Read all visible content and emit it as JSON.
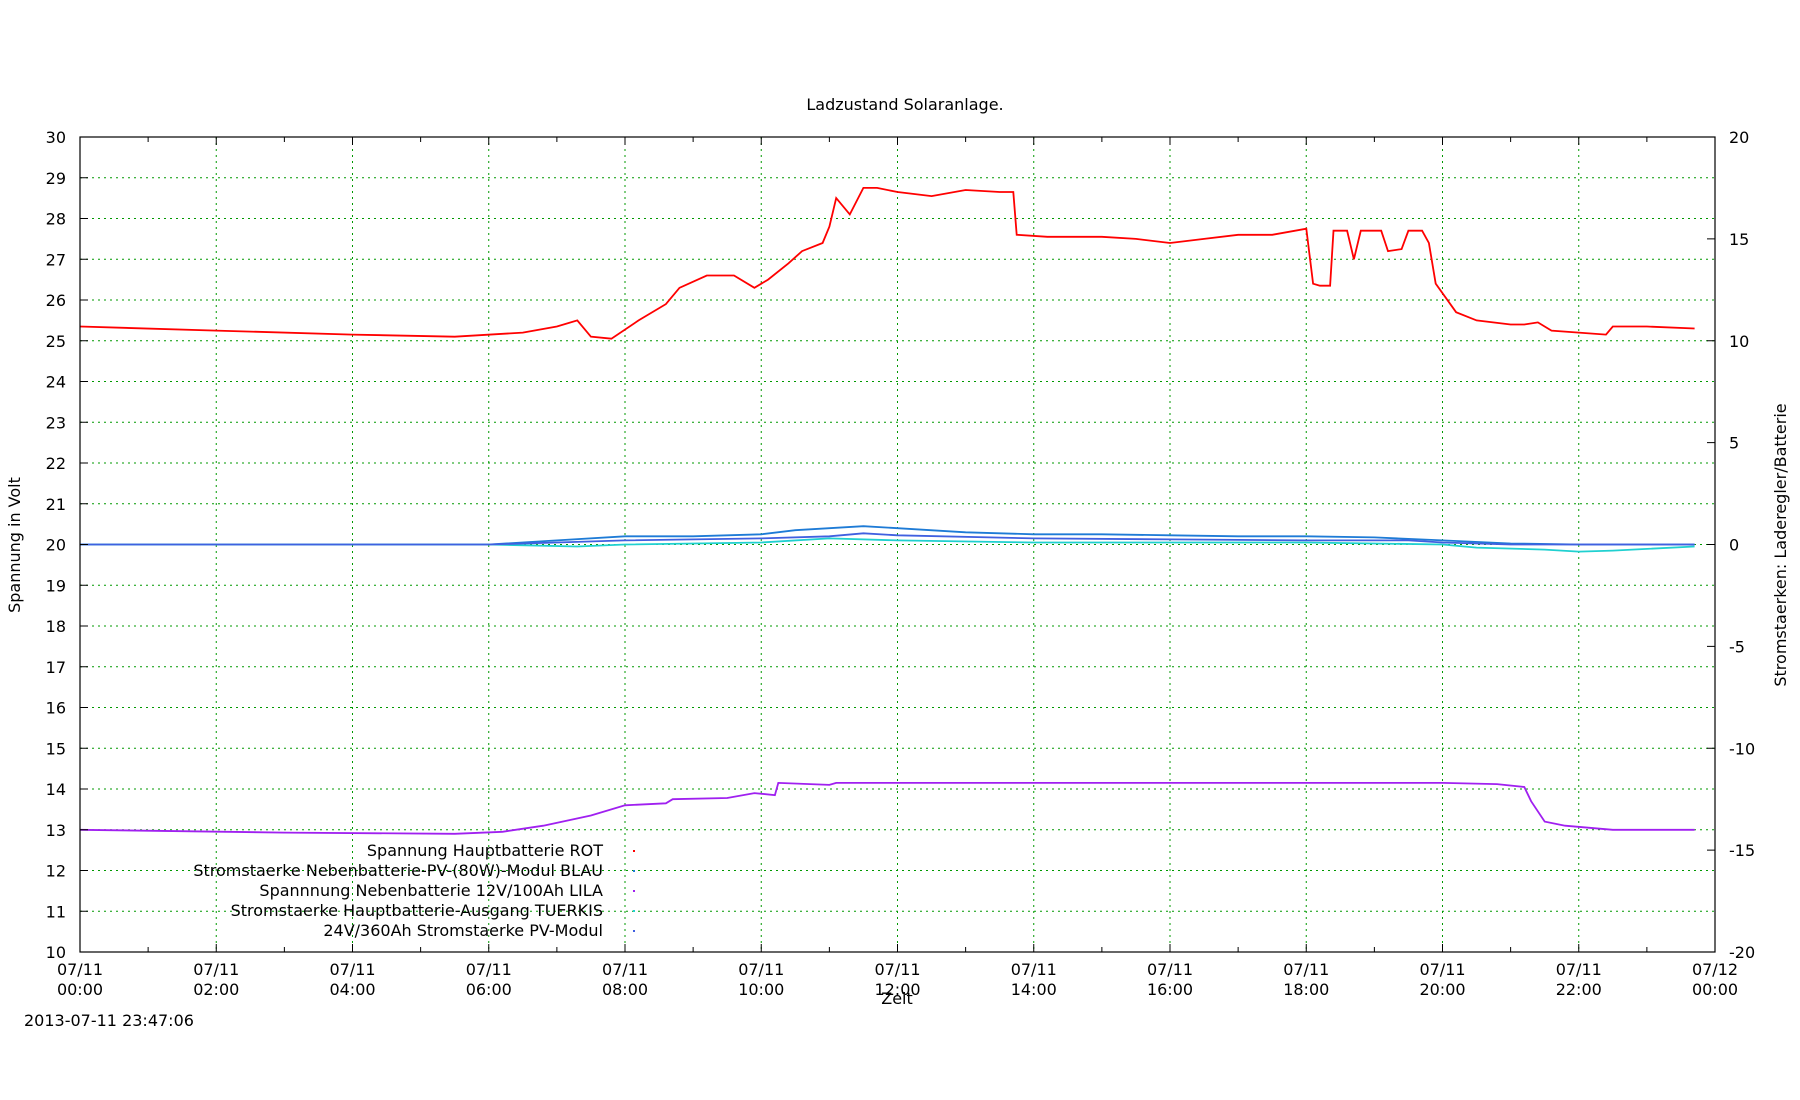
{
  "chart_data": {
    "type": "line",
    "title": "Ladzustand Solaranlage.",
    "timestamp": "2013-07-11 23:47:06",
    "xlabel": "Zeit",
    "ylabel": "Spannung in Volt",
    "y2label": "Stromstaerken: Laderegler/Batterie",
    "x_range": [
      "07/11 00:00",
      "07/12 00:00"
    ],
    "ylim": [
      10,
      30
    ],
    "y2lim": [
      -20,
      20
    ],
    "grid": true,
    "legend_position": "bottom-left inside",
    "x_ticks": [
      {
        "date": "07/11",
        "time": "00:00",
        "hour": 0
      },
      {
        "date": "07/11",
        "time": "02:00",
        "hour": 2
      },
      {
        "date": "07/11",
        "time": "04:00",
        "hour": 4
      },
      {
        "date": "07/11",
        "time": "06:00",
        "hour": 6
      },
      {
        "date": "07/11",
        "time": "08:00",
        "hour": 8
      },
      {
        "date": "07/11",
        "time": "10:00",
        "hour": 10
      },
      {
        "date": "07/11",
        "time": "12:00",
        "hour": 12
      },
      {
        "date": "07/11",
        "time": "14:00",
        "hour": 14
      },
      {
        "date": "07/11",
        "time": "16:00",
        "hour": 16
      },
      {
        "date": "07/11",
        "time": "18:00",
        "hour": 18
      },
      {
        "date": "07/11",
        "time": "20:00",
        "hour": 20
      },
      {
        "date": "07/11",
        "time": "22:00",
        "hour": 22
      },
      {
        "date": "07/12",
        "time": "00:00",
        "hour": 24
      }
    ],
    "y_ticks": [
      10,
      11,
      12,
      13,
      14,
      15,
      16,
      17,
      18,
      19,
      20,
      21,
      22,
      23,
      24,
      25,
      26,
      27,
      28,
      29,
      30
    ],
    "y2_ticks": [
      -20,
      -15,
      -10,
      -5,
      0,
      5,
      10,
      15,
      20
    ],
    "series": [
      {
        "name": "Spannung Hauptbatterie ROT",
        "axis": "y",
        "color": "#ff0000",
        "x_hours": [
          0,
          2,
          4,
          5.5,
          6.5,
          7.0,
          7.3,
          7.5,
          7.8,
          8.2,
          8.6,
          8.8,
          9.2,
          9.6,
          9.9,
          10.1,
          10.4,
          10.6,
          10.9,
          11.0,
          11.1,
          11.3,
          11.5,
          11.7,
          12.0,
          12.5,
          13.0,
          13.5,
          13.7,
          13.75,
          14.2,
          15.0,
          15.5,
          16.0,
          16.5,
          17.0,
          17.5,
          18.0,
          18.1,
          18.2,
          18.35,
          18.4,
          18.6,
          18.7,
          18.8,
          19.1,
          19.2,
          19.4,
          19.5,
          19.7,
          19.8,
          19.9,
          20.2,
          20.5,
          21.0,
          21.2,
          21.4,
          21.6,
          22.0,
          22.4,
          22.5,
          23.0,
          23.7
        ],
        "values": [
          25.35,
          25.25,
          25.15,
          25.1,
          25.2,
          25.35,
          25.5,
          25.1,
          25.05,
          25.5,
          25.9,
          26.3,
          26.6,
          26.6,
          26.3,
          26.5,
          26.9,
          27.2,
          27.4,
          27.8,
          28.5,
          28.1,
          28.75,
          28.75,
          28.65,
          28.55,
          28.7,
          28.65,
          28.65,
          27.6,
          27.55,
          27.55,
          27.5,
          27.4,
          27.5,
          27.6,
          27.6,
          27.75,
          26.4,
          26.35,
          26.35,
          27.7,
          27.7,
          27.0,
          27.7,
          27.7,
          27.2,
          27.25,
          27.7,
          27.7,
          27.4,
          26.4,
          25.7,
          25.5,
          25.4,
          25.4,
          25.45,
          25.25,
          25.2,
          25.15,
          25.35,
          25.35,
          25.3
        ]
      },
      {
        "name": "Stromstaerke Nebenbatterie-PV-(80W)-Modul BLAU",
        "axis": "y2",
        "color": "#1e7bd6",
        "x_hours": [
          0,
          6.0,
          7.0,
          8.0,
          9.0,
          10.0,
          10.5,
          11.0,
          11.5,
          12.0,
          13.0,
          14.0,
          15.0,
          16.0,
          17.0,
          18.0,
          19.0,
          20.0,
          21.0,
          22.0,
          23.7
        ],
        "values": [
          0.0,
          0.0,
          0.2,
          0.4,
          0.4,
          0.5,
          0.7,
          0.8,
          0.9,
          0.8,
          0.6,
          0.5,
          0.5,
          0.45,
          0.4,
          0.4,
          0.35,
          0.2,
          0.05,
          0.0,
          0.0
        ]
      },
      {
        "name": "Spannnung Nebenbatterie 12V/100Ah LILA",
        "axis": "y",
        "color": "#a020f0",
        "x_hours": [
          0,
          3,
          5.5,
          6.2,
          6.8,
          7.5,
          8.0,
          8.6,
          8.7,
          9.5,
          9.9,
          10.2,
          10.25,
          11.0,
          11.1,
          12.0,
          14.0,
          16.0,
          18.0,
          20.0,
          20.8,
          21.2,
          21.3,
          21.5,
          21.8,
          22.5,
          23.7
        ],
        "values": [
          13.0,
          12.93,
          12.9,
          12.95,
          13.1,
          13.35,
          13.6,
          13.65,
          13.75,
          13.78,
          13.9,
          13.85,
          14.15,
          14.1,
          14.15,
          14.15,
          14.15,
          14.15,
          14.15,
          14.15,
          14.12,
          14.05,
          13.7,
          13.2,
          13.1,
          13.0,
          13.0
        ]
      },
      {
        "name": "Stromstaerke Hauptbatterie-Ausgang TUERKIS",
        "axis": "y2",
        "color": "#20d0d0",
        "x_hours": [
          0,
          6.0,
          7.3,
          8.0,
          10.0,
          11.0,
          12.0,
          14.0,
          16.0,
          18.0,
          20.0,
          20.5,
          21.5,
          22.0,
          22.5,
          23.7
        ],
        "values": [
          0.0,
          0.0,
          -0.1,
          0.0,
          0.1,
          0.3,
          0.2,
          0.1,
          0.1,
          0.1,
          0.0,
          -0.15,
          -0.25,
          -0.35,
          -0.3,
          -0.1
        ]
      },
      {
        "name": "24V/360Ah Stromstaerke PV-Modul",
        "axis": "y2",
        "color": "#4060e0",
        "x_hours": [
          0,
          6.0,
          7.0,
          8.0,
          10.0,
          11.0,
          11.5,
          12.0,
          14.0,
          16.0,
          18.0,
          19.5,
          20.0,
          21.0,
          23.7
        ],
        "values": [
          0.0,
          0.0,
          0.1,
          0.2,
          0.3,
          0.4,
          0.55,
          0.45,
          0.3,
          0.25,
          0.2,
          0.2,
          0.1,
          0.0,
          0.0
        ]
      }
    ]
  }
}
